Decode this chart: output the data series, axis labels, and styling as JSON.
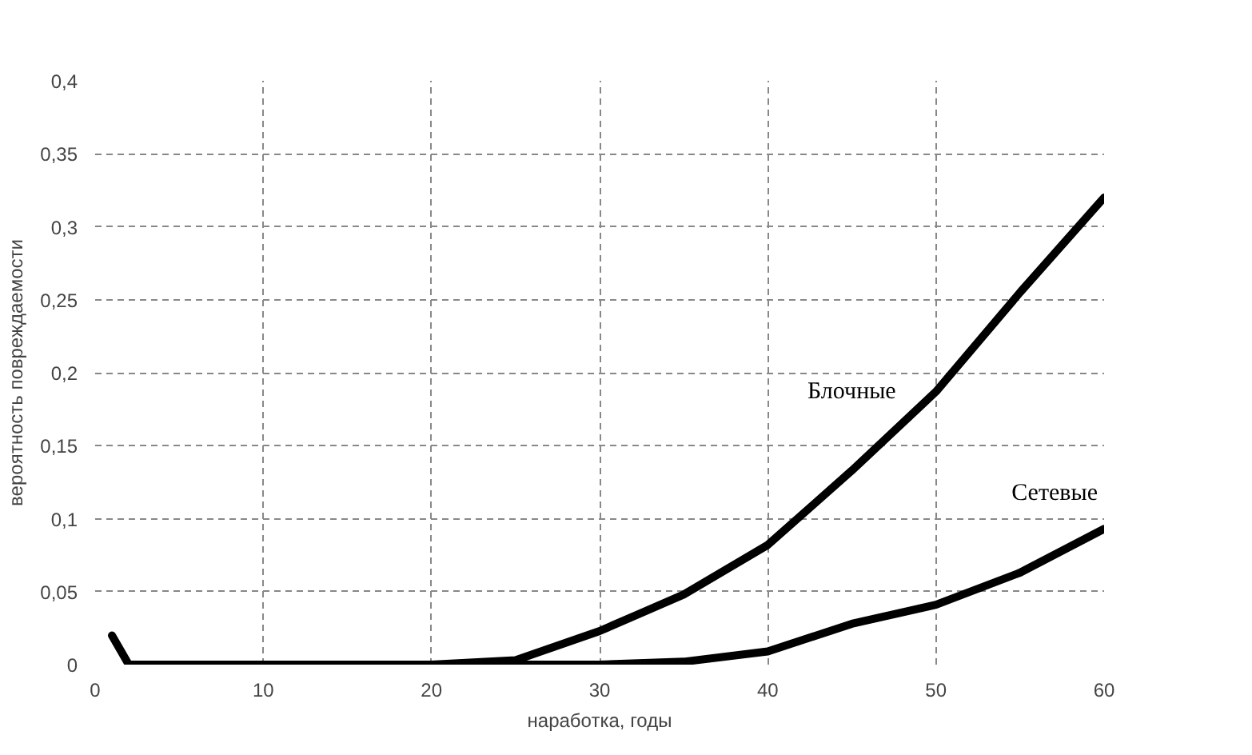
{
  "chart_data": {
    "type": "line",
    "xlabel": "наработка, годы",
    "ylabel": "вероятность повреждаемости",
    "xlim": [
      0,
      60
    ],
    "ylim": [
      0,
      0.4
    ],
    "xticks": [
      0,
      10,
      20,
      30,
      40,
      50,
      60
    ],
    "yticks": [
      {
        "value": 0,
        "label": "0"
      },
      {
        "value": 0.05,
        "label": "0,05"
      },
      {
        "value": 0.1,
        "label": "0,1"
      },
      {
        "value": 0.15,
        "label": "0,15"
      },
      {
        "value": 0.2,
        "label": "0,2"
      },
      {
        "value": 0.25,
        "label": "0,25"
      },
      {
        "value": 0.3,
        "label": "0,3"
      },
      {
        "value": 0.35,
        "label": "0,35"
      },
      {
        "value": 0.4,
        "label": "0,4"
      }
    ],
    "grid": true,
    "marker": "none",
    "line_style": "solid",
    "series": [
      {
        "name": "Блочные",
        "color": "#000000",
        "x": [
          1,
          2,
          10,
          20,
          25,
          30,
          35,
          40,
          45,
          50,
          55,
          60
        ],
        "values": [
          0.02,
          0,
          0,
          0,
          0.003,
          0.023,
          0.048,
          0.082,
          0.133,
          0.187,
          0.255,
          0.32
        ]
      },
      {
        "name": "Сетевые",
        "color": "#000000",
        "x": [
          2,
          10,
          20,
          30,
          35,
          40,
          45,
          50,
          55,
          60
        ],
        "values": [
          0,
          0,
          0,
          0,
          0.002,
          0.009,
          0.028,
          0.041,
          0.063,
          0.093
        ]
      }
    ]
  }
}
